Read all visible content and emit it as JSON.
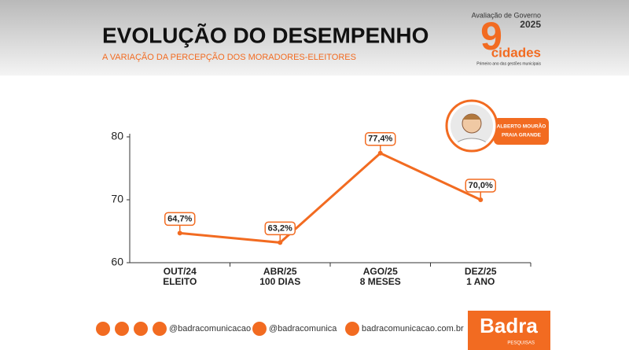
{
  "header": {
    "title": "EVOLUÇÃO DO DESEMPENHO",
    "subtitle": "A VARIAÇÃO DA PERCEPÇÃO DOS MORADORES-ELEITORES"
  },
  "badge": {
    "line1": "Avaliação de Governo",
    "year": "2025",
    "number": "9",
    "word": "cidades",
    "tagline": "Primeiro ano das gestões municipais"
  },
  "person": {
    "name": "ALBERTO MOURÃO",
    "city": "PRAIA GRANDE"
  },
  "chart_data": {
    "type": "line",
    "categories": [
      [
        "OUT/24",
        "ELEITO"
      ],
      [
        "ABR/25",
        "100 DIAS"
      ],
      [
        "AGO/25",
        "8 MESES"
      ],
      [
        "DEZ/25",
        "1 ANO"
      ]
    ],
    "values": [
      64.7,
      63.2,
      77.4,
      70.0
    ],
    "value_labels": [
      "64,7%",
      "63,2%",
      "77,4%",
      "70,0%"
    ],
    "color": "#f26b21",
    "ylim": [
      60,
      80
    ],
    "yticks": [
      60,
      70,
      80
    ],
    "grid": false
  },
  "footer": {
    "instagram": "@badracomunicacao",
    "x": "@badracomunica",
    "site": "badracomunicacao.com.br",
    "brand": "Badra",
    "brand_sub": "PESQUISAS"
  }
}
